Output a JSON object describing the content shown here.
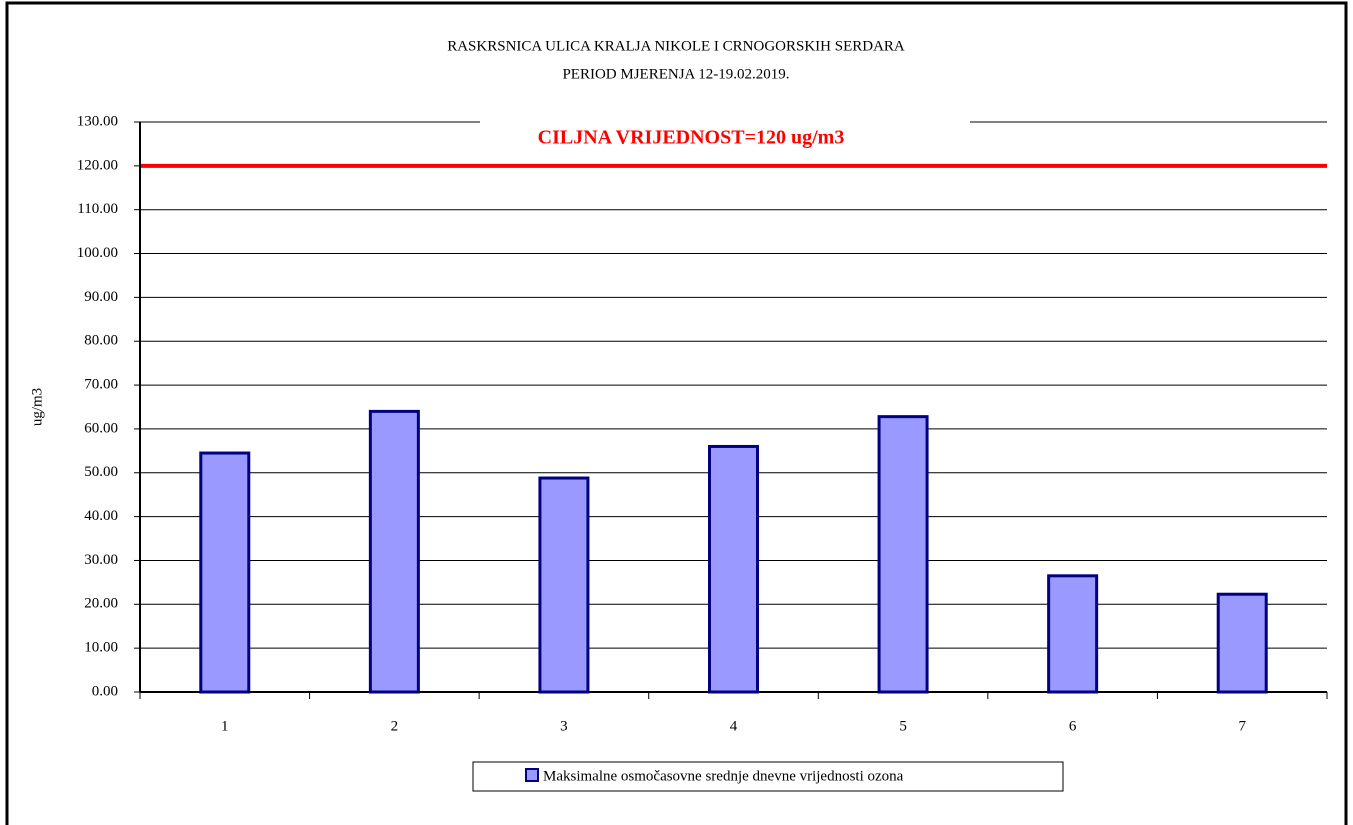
{
  "chart_data": {
    "type": "bar",
    "title": "RASKRSNICA ULICA  KRALJA NIKOLE I CRNOGORSKIH SERDARA",
    "subtitle": "PERIOD MJERENJA  12-19.02.2019.",
    "y_label": "ug/m3",
    "categories": [
      "1",
      "2",
      "3",
      "4",
      "5",
      "6",
      "7"
    ],
    "series": [
      {
        "name": "Maksimalne osmočasovne srednje dnevne vrijednosti ozona",
        "color": "#9999ff",
        "values": [
          54.5,
          64,
          48.8,
          56,
          62.8,
          26.5,
          22.3
        ]
      }
    ],
    "ylim": [
      0,
      130
    ],
    "yticks": [
      {
        "value": 0,
        "label": "0.00"
      },
      {
        "value": 10,
        "label": "10.00"
      },
      {
        "value": 20,
        "label": "20.00"
      },
      {
        "value": 30,
        "label": "30.00"
      },
      {
        "value": 40,
        "label": "40.00"
      },
      {
        "value": 50,
        "label": "50.00"
      },
      {
        "value": 60,
        "label": "60.00"
      },
      {
        "value": 70,
        "label": "70.00"
      },
      {
        "value": 80,
        "label": "80.00"
      },
      {
        "value": 90,
        "label": "90.00"
      },
      {
        "value": 100,
        "label": "100.00"
      },
      {
        "value": 110,
        "label": "110.00"
      },
      {
        "value": 120,
        "label": "120.00"
      },
      {
        "value": 130,
        "label": "130.00"
      }
    ],
    "grid": true,
    "target_line": {
      "value": 120,
      "color": "#ff0000",
      "label": "CILJNA VRIJEDNOST=120 ug/m3"
    },
    "legend": "bottom"
  }
}
